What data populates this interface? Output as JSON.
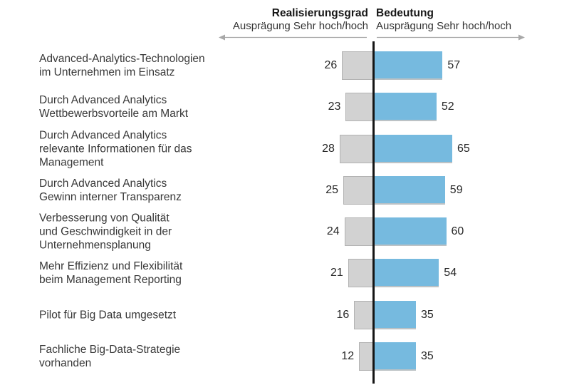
{
  "page": {
    "background": "#ffffff"
  },
  "header": {
    "left": {
      "title": "Realisierungsgrad",
      "subtitle": "Ausprägung Sehr hoch/hoch"
    },
    "right": {
      "title": "Bedeutung",
      "subtitle": "Ausprägung Sehr hoch/hoch"
    }
  },
  "colors": {
    "left_bar": "#d2d2d2",
    "left_bar_border": "#b2b2b2",
    "right_bar": "#76badf",
    "center_axis_line": "#151515",
    "arrow": "#a8a8a8",
    "label_text": "#383838",
    "value_text": "#272727"
  },
  "chart_data": {
    "type": "bar",
    "variant": "diverging-horizontal",
    "title": "",
    "categories": [
      "Advanced-Analytics-Technologien im Unternehmen im Einsatz",
      "Durch Advanced Analytics Wettbewerbsvorteile am Markt",
      "Durch Advanced Analytics relevante Informationen für das Management",
      "Durch Advanced Analytics Gewinn interner Transparenz",
      "Verbesserung von Qualität und Geschwindigkeit in der Unternehmensplanung",
      "Mehr Effizienz und Flexibilität beim Management Reporting",
      "Pilot für Big Data umgesetzt",
      "Fachliche Big-Data-Strategie vorhanden"
    ],
    "series": [
      {
        "name": "Realisierungsgrad",
        "subtitle": "Ausprägung Sehr hoch/hoch",
        "side": "left",
        "color": "#d2d2d2",
        "values": [
          26,
          23,
          28,
          25,
          24,
          21,
          16,
          12
        ]
      },
      {
        "name": "Bedeutung",
        "subtitle": "Ausprägung Sehr hoch/hoch",
        "side": "right",
        "color": "#76badf",
        "values": [
          57,
          52,
          65,
          59,
          60,
          54,
          35,
          35
        ]
      }
    ],
    "value_labels_shown": true,
    "legend_position": "top",
    "grid": false,
    "xlim": [
      -70,
      70
    ]
  },
  "rows": [
    {
      "label": "Advanced-Analytics-Technologien\nim Unternehmen im Einsatz",
      "left_value": 26,
      "right_value": 57
    },
    {
      "label": "Durch Advanced Analytics\nWettbewerbsvorteile am Markt",
      "left_value": 23,
      "right_value": 52
    },
    {
      "label": "Durch Advanced Analytics\nrelevante Informationen für das\nManagement",
      "left_value": 28,
      "right_value": 65
    },
    {
      "label": "Durch Advanced Analytics\nGewinn interner Transparenz",
      "left_value": 25,
      "right_value": 59
    },
    {
      "label": "Verbesserung von Qualität\nund Geschwindigkeit in der\nUnternehmensplanung",
      "left_value": 24,
      "right_value": 60
    },
    {
      "label": "Mehr Effizienz und Flexibilität\nbeim Management Reporting",
      "left_value": 21,
      "right_value": 54
    },
    {
      "label": "Pilot für Big Data umgesetzt",
      "left_value": 16,
      "right_value": 35
    },
    {
      "label": "Fachliche Big-Data-Strategie\nvorhanden",
      "left_value": 12,
      "right_value": 35
    }
  ]
}
